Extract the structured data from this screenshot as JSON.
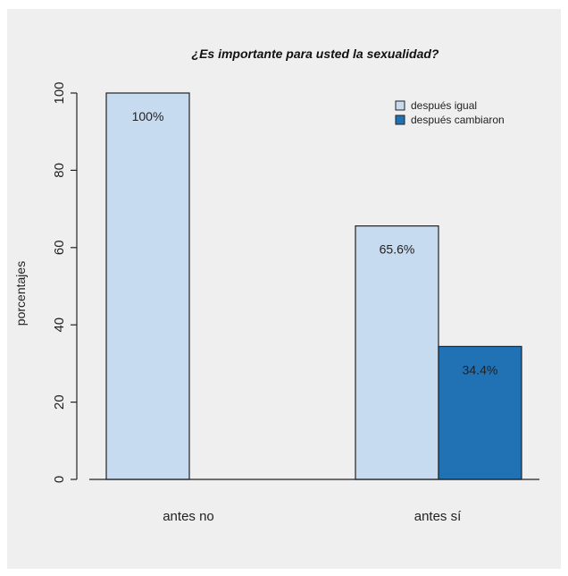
{
  "chart_data": {
    "type": "bar",
    "title": "¿Es importante para usted la sexualidad?",
    "ylabel": "porcentajes",
    "xlabel": "",
    "ylim": [
      0,
      100
    ],
    "yticks": [
      "0",
      "20",
      "40",
      "60",
      "80",
      "100"
    ],
    "categories": [
      "antes no",
      "antes sí"
    ],
    "series": [
      {
        "name": "después igual",
        "color": "#c6dbef",
        "values": [
          100,
          65.6
        ],
        "labels": [
          "100%",
          "65.6%"
        ]
      },
      {
        "name": "después cambiaron",
        "color": "#2171b5",
        "values": [
          null,
          34.4
        ],
        "labels": [
          "",
          "34.4%"
        ]
      }
    ],
    "legend_position": "top-right",
    "grid": false
  }
}
